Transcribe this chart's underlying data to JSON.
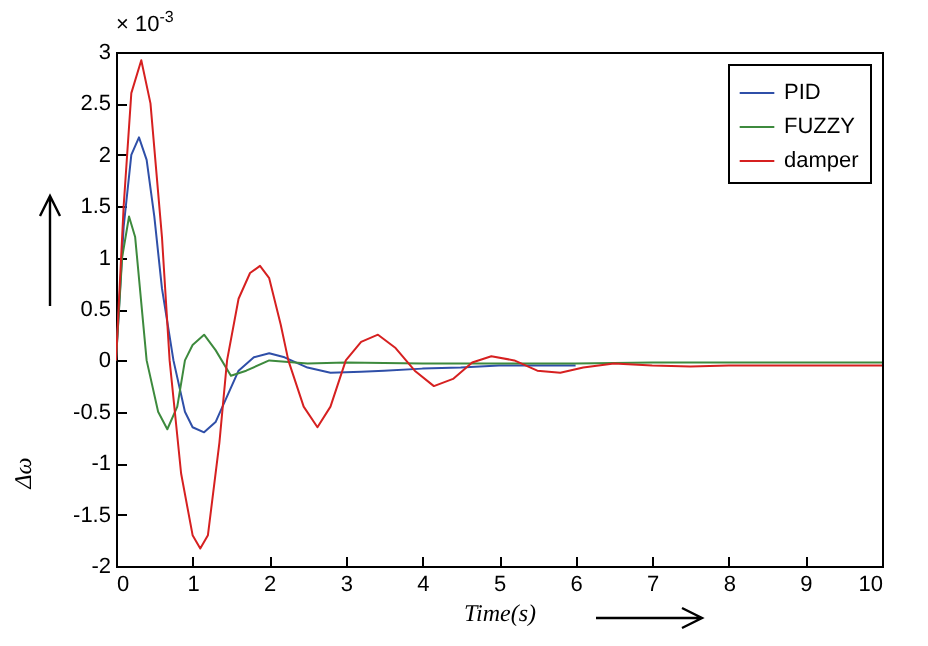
{
  "chart_data": {
    "type": "line",
    "xlabel": "Time(s)",
    "ylabel": "Δω",
    "annotations": [
      "× 10$^{-3}$"
    ],
    "xlim": [
      0,
      10
    ],
    "xticks": [
      0,
      1,
      2,
      3,
      4,
      5,
      6,
      7,
      8,
      9,
      10
    ],
    "ylim": [
      -2,
      3
    ],
    "yticks": [
      -2,
      -1.5,
      -1,
      -0.5,
      0,
      0.5,
      1,
      1.5,
      2,
      2.5,
      3
    ],
    "grid": false,
    "legend": "top right",
    "line_style": "solid",
    "marker": "none",
    "series": [
      {
        "name": "PID",
        "color": "#2f4fa8",
        "x": [
          0,
          0.1,
          0.2,
          0.3,
          0.4,
          0.5,
          0.6,
          0.75,
          0.9,
          1.0,
          1.15,
          1.3,
          1.45,
          1.6,
          1.8,
          2.0,
          2.2,
          2.5,
          2.8,
          3.2,
          3.5,
          4.0,
          4.5,
          5,
          6
        ],
        "values": [
          0,
          1.3,
          2.0,
          2.17,
          1.95,
          1.4,
          0.7,
          0,
          -0.5,
          -0.65,
          -0.7,
          -0.6,
          -0.35,
          -0.1,
          0.03,
          0.07,
          0.03,
          -0.07,
          -0.12,
          -0.11,
          -0.1,
          -0.08,
          -0.07,
          -0.05,
          -0.05
        ]
      },
      {
        "name": "FUZZY",
        "color": "#3d8a3d",
        "x": [
          0,
          0.08,
          0.17,
          0.25,
          0.4,
          0.55,
          0.67,
          0.8,
          0.9,
          1.0,
          1.15,
          1.3,
          1.5,
          1.7,
          2.0,
          2.5,
          3,
          4,
          5,
          6,
          7,
          8,
          9,
          10
        ],
        "values": [
          0,
          1.0,
          1.4,
          1.2,
          0,
          -0.5,
          -0.67,
          -0.45,
          0,
          0.15,
          0.25,
          0.1,
          -0.15,
          -0.1,
          0,
          -0.03,
          -0.02,
          -0.03,
          -0.03,
          -0.03,
          -0.02,
          -0.02,
          -0.02,
          -0.02
        ]
      },
      {
        "name": "damper",
        "color": "#d62020",
        "x": [
          0,
          0.1,
          0.2,
          0.33,
          0.45,
          0.6,
          0.7,
          0.85,
          1.0,
          1.1,
          1.2,
          1.35,
          1.45,
          1.6,
          1.75,
          1.88,
          2.0,
          2.15,
          2.25,
          2.45,
          2.63,
          2.8,
          3.0,
          3.2,
          3.42,
          3.65,
          3.9,
          4.15,
          4.4,
          4.65,
          4.9,
          5.2,
          5.5,
          5.8,
          6.1,
          6.5,
          7.0,
          7.5,
          8,
          9,
          10
        ],
        "values": [
          0,
          1.5,
          2.6,
          2.92,
          2.5,
          1.2,
          0,
          -1.1,
          -1.7,
          -1.83,
          -1.7,
          -0.8,
          0,
          0.6,
          0.85,
          0.92,
          0.8,
          0.35,
          0,
          -0.45,
          -0.65,
          -0.45,
          0,
          0.18,
          0.25,
          0.12,
          -0.1,
          -0.25,
          -0.18,
          -0.02,
          0.04,
          0.0,
          -0.1,
          -0.12,
          -0.07,
          -0.03,
          -0.05,
          -0.06,
          -0.05,
          -0.05,
          -0.05
        ]
      }
    ]
  }
}
